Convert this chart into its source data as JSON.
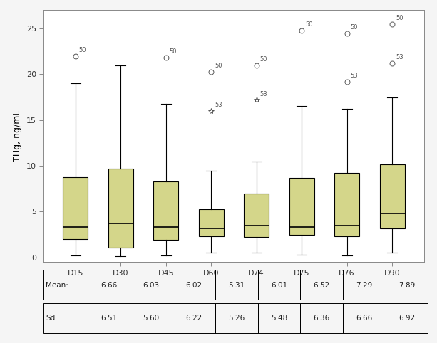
{
  "categories": [
    "D15",
    "D30",
    "D45",
    "D60",
    "D74",
    "D75",
    "D76",
    "D90"
  ],
  "ylabel": "THg, ng/mL",
  "ylim": [
    -0.5,
    27
  ],
  "yticks": [
    0,
    5,
    10,
    15,
    20,
    25
  ],
  "box_color": "#d4d68a",
  "box_edge_color": "#000000",
  "median_color": "#000000",
  "whisker_color": "#000000",
  "outlier_marker": "o",
  "mean_row": [
    "Mean:",
    "6.66",
    "6.03",
    "6.02",
    "5.31",
    "6.01",
    "6.52",
    "7.29",
    "7.89"
  ],
  "sd_row": [
    "Sd:",
    "6.51",
    "5.60",
    "6.22",
    "5.26",
    "5.48",
    "6.36",
    "6.66",
    "6.92"
  ],
  "boxes": [
    {
      "q1": 2.0,
      "median": 3.3,
      "q3": 8.8,
      "whisker_low": 0.2,
      "whisker_high": 19.0,
      "outliers": [
        22.0
      ],
      "outlier_labels": [
        "50"
      ],
      "extreme_outliers": [],
      "extreme_labels": []
    },
    {
      "q1": 1.1,
      "median": 3.7,
      "q3": 9.7,
      "whisker_low": 0.1,
      "whisker_high": 21.0,
      "outliers": [],
      "outlier_labels": [],
      "extreme_outliers": [],
      "extreme_labels": []
    },
    {
      "q1": 1.9,
      "median": 3.3,
      "q3": 8.3,
      "whisker_low": 0.2,
      "whisker_high": 16.8,
      "outliers": [
        21.8
      ],
      "outlier_labels": [
        "50"
      ],
      "extreme_outliers": [],
      "extreme_labels": []
    },
    {
      "q1": 2.3,
      "median": 3.2,
      "q3": 5.3,
      "whisker_low": 0.5,
      "whisker_high": 9.5,
      "outliers": [
        20.3
      ],
      "outlier_labels": [
        "50"
      ],
      "extreme_outliers": [
        16.0
      ],
      "extreme_labels": [
        "53"
      ]
    },
    {
      "q1": 2.2,
      "median": 3.5,
      "q3": 7.0,
      "whisker_low": 0.5,
      "whisker_high": 10.5,
      "outliers": [
        21.0
      ],
      "outlier_labels": [
        "50"
      ],
      "extreme_outliers": [
        17.2
      ],
      "extreme_labels": [
        "53"
      ]
    },
    {
      "q1": 2.5,
      "median": 3.3,
      "q3": 8.7,
      "whisker_low": 0.3,
      "whisker_high": 16.5,
      "outliers": [
        24.8
      ],
      "outlier_labels": [
        "50"
      ],
      "extreme_outliers": [],
      "extreme_labels": []
    },
    {
      "q1": 2.3,
      "median": 3.5,
      "q3": 9.2,
      "whisker_low": 0.2,
      "whisker_high": 16.2,
      "outliers": [
        24.5,
        19.2
      ],
      "outlier_labels": [
        "50",
        "53"
      ],
      "extreme_outliers": [],
      "extreme_labels": []
    },
    {
      "q1": 3.2,
      "median": 4.8,
      "q3": 10.2,
      "whisker_low": 0.5,
      "whisker_high": 17.5,
      "outliers": [
        25.5,
        21.2
      ],
      "outlier_labels": [
        "50",
        "53"
      ],
      "extreme_outliers": [],
      "extreme_labels": []
    }
  ],
  "background_color": "#f5f5f5",
  "plot_bg_color": "#ffffff",
  "grid_color": "#ffffff",
  "fig_width": 6.13,
  "fig_height": 4.82
}
